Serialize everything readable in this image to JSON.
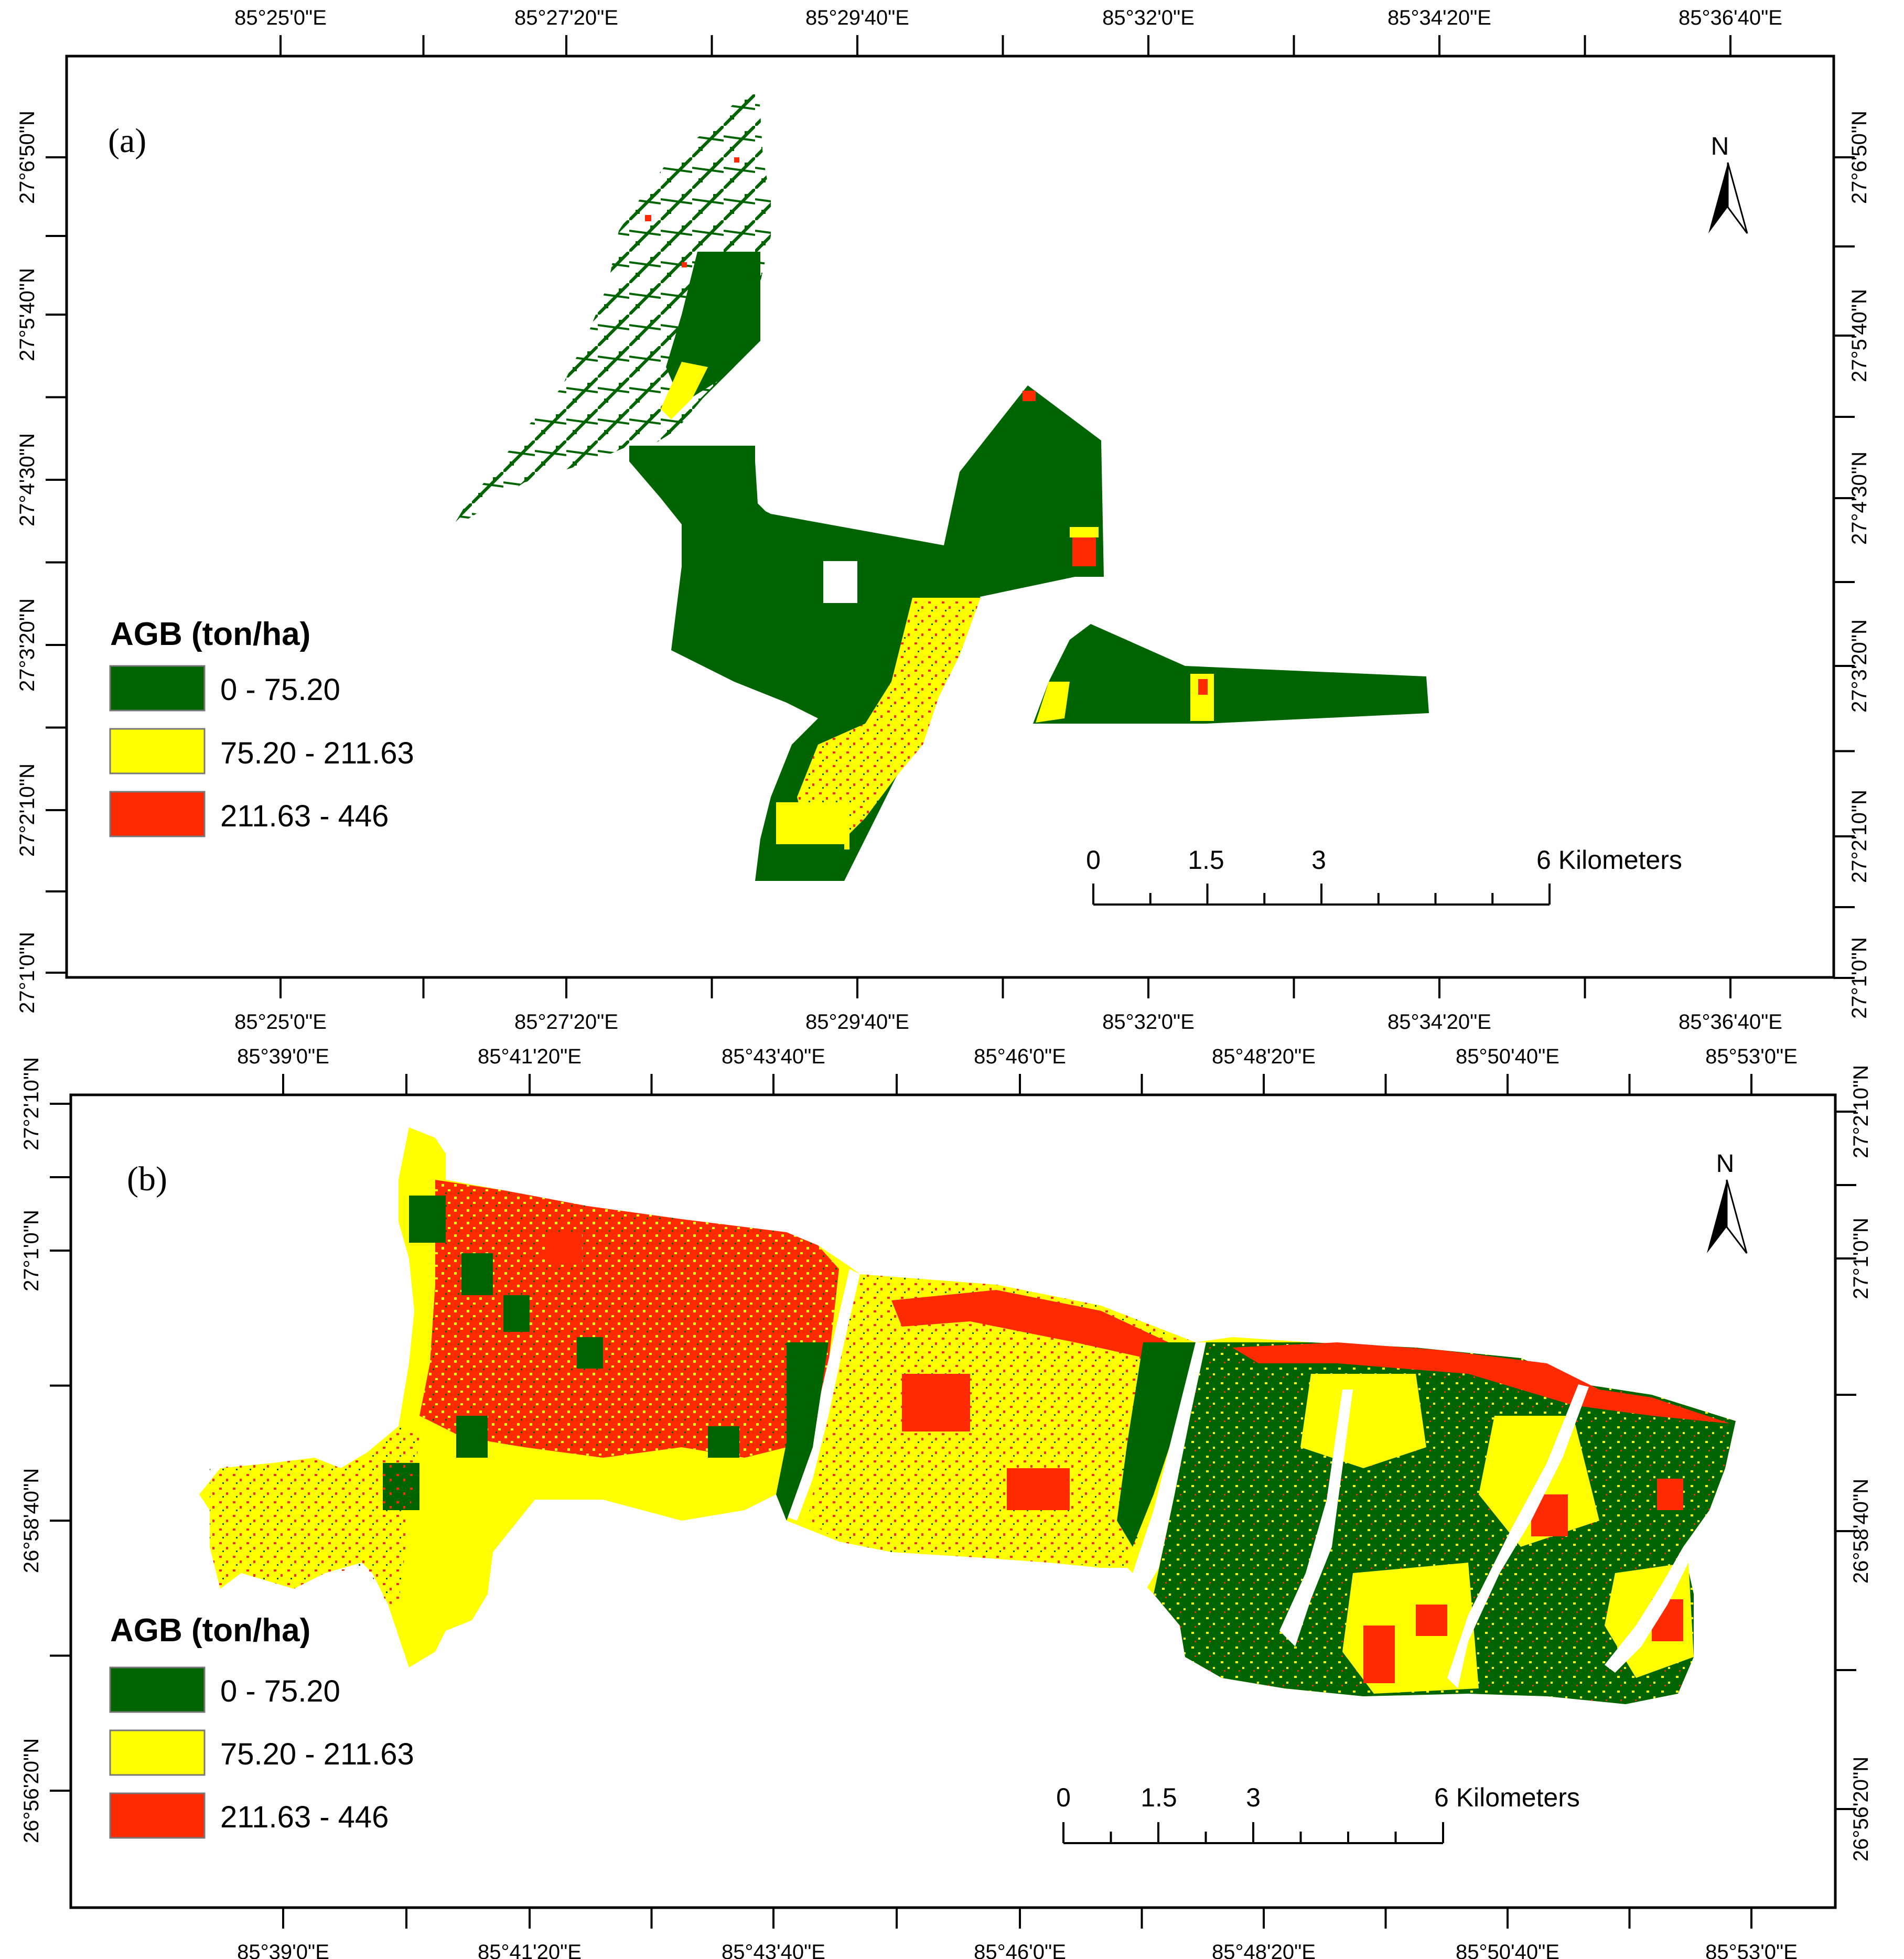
{
  "colors": {
    "class_low": "#006400",
    "class_mid": "#ffff00",
    "class_high": "#ff2a00",
    "frame": "#000000"
  },
  "panels": [
    {
      "label": "(a)",
      "top_lon_ticks": [
        "85°25'0\"E",
        "85°27'20\"E",
        "85°29'40\"E",
        "85°32'0\"E",
        "85°34'20\"E",
        "85°36'40\"E"
      ],
      "bottom_lon_ticks": [
        "85°25'0\"E",
        "85°27'20\"E",
        "85°29'40\"E",
        "85°32'0\"E",
        "85°34'20\"E",
        "85°36'40\"E"
      ],
      "left_lat_ticks": [
        "27°6'50\"N",
        "27°5'40\"N",
        "27°4'30\"N",
        "27°3'20\"N",
        "27°2'10\"N",
        "27°1'0\"N"
      ],
      "right_lat_ticks": [
        "27°6'50\"N",
        "27°5'40\"N",
        "27°4'30\"N",
        "27°3'20\"N",
        "27°2'10\"N",
        "27°1'0\"N"
      ],
      "legend": {
        "title": "AGB (ton/ha)",
        "items": [
          {
            "label": "0 - 75.20",
            "color": "#006400"
          },
          {
            "label": "75.20 - 211.63",
            "color": "#ffff00"
          },
          {
            "label": "211.63 - 446",
            "color": "#ff2a00"
          }
        ]
      },
      "scale": {
        "labels": [
          "0",
          "1.5",
          "3",
          "6 Kilometers"
        ],
        "values_km": [
          0,
          1.5,
          3,
          6
        ]
      },
      "north_label": "N"
    },
    {
      "label": "(b)",
      "top_lon_ticks": [
        "85°39'0\"E",
        "85°41'20\"E",
        "85°43'40\"E",
        "85°46'0\"E",
        "85°48'20\"E",
        "85°50'40\"E",
        "85°53'0\"E"
      ],
      "bottom_lon_ticks": [
        "85°39'0\"E",
        "85°41'20\"E",
        "85°43'40\"E",
        "85°46'0\"E",
        "85°48'20\"E",
        "85°50'40\"E",
        "85°53'0\"E"
      ],
      "left_lat_ticks": [
        "27°2'10\"N",
        "27°1'0\"N",
        "26°58'40\"N",
        "26°56'20\"N"
      ],
      "right_lat_ticks": [
        "27°2'10\"N",
        "27°1'0\"N",
        "26°58'40\"N",
        "26°56'20\"N"
      ],
      "legend": {
        "title": "AGB (ton/ha)",
        "items": [
          {
            "label": "0 - 75.20",
            "color": "#006400"
          },
          {
            "label": "75.20 - 211.63",
            "color": "#ffff00"
          },
          {
            "label": "211.63 - 446",
            "color": "#ff2a00"
          }
        ]
      },
      "scale": {
        "labels": [
          "0",
          "1.5",
          "3",
          "6 Kilometers"
        ],
        "values_km": [
          0,
          1.5,
          3,
          6
        ]
      },
      "north_label": "N"
    }
  ]
}
